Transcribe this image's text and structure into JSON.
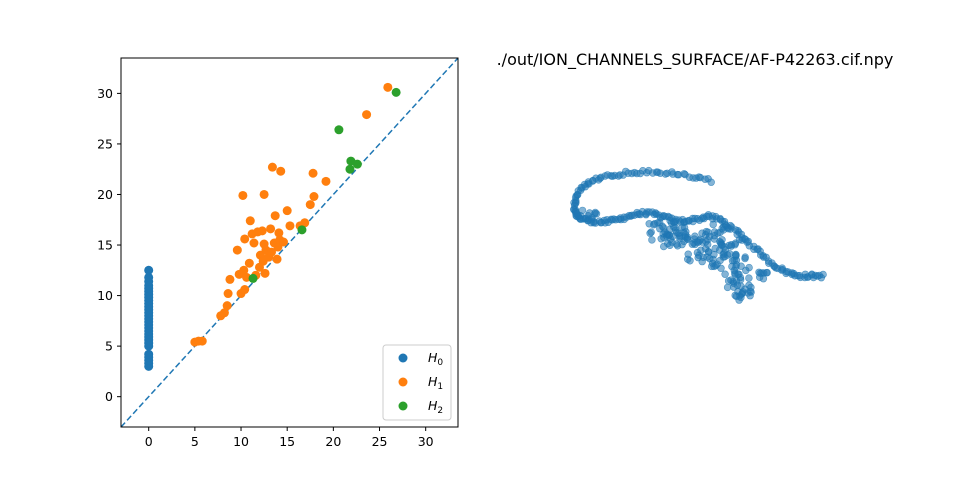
{
  "title": "./out/ION_CHANNELS_SURFACE/AF-P42263.cif.npy",
  "colors": {
    "H0": "#1f77b4",
    "H1": "#ff7f0e",
    "H2": "#2ca02c",
    "diagonal": "#1f77b4",
    "cloud": "#1f77b4"
  },
  "chart_data": [
    {
      "type": "scatter",
      "title": "",
      "xlabel": "",
      "ylabel": "",
      "xlim": [
        -3,
        33.5
      ],
      "ylim": [
        -3,
        33.5
      ],
      "xticks": [
        0,
        5,
        10,
        15,
        20,
        25,
        30
      ],
      "yticks": [
        0,
        5,
        10,
        15,
        20,
        25,
        30
      ],
      "grid": false,
      "legend": "lower-right",
      "diagonal": {
        "style": "dashed",
        "from": [
          -3,
          -3
        ],
        "to": [
          33.5,
          33.5
        ]
      },
      "series": [
        {
          "name": "H",
          "subscript": "0",
          "color_key": "H0",
          "points": [
            [
              0,
              3.0
            ],
            [
              0,
              3.3
            ],
            [
              0,
              3.6
            ],
            [
              0,
              3.9
            ],
            [
              0,
              4.2
            ],
            [
              0,
              5.0
            ],
            [
              0,
              5.3
            ],
            [
              0,
              5.6
            ],
            [
              0,
              5.9
            ],
            [
              0,
              6.2
            ],
            [
              0,
              6.5
            ],
            [
              0,
              6.8
            ],
            [
              0,
              7.1
            ],
            [
              0,
              7.4
            ],
            [
              0,
              7.7
            ],
            [
              0,
              8.0
            ],
            [
              0,
              8.3
            ],
            [
              0,
              8.6
            ],
            [
              0,
              8.9
            ],
            [
              0,
              9.2
            ],
            [
              0,
              9.5
            ],
            [
              0,
              9.8
            ],
            [
              0,
              10.1
            ],
            [
              0,
              10.4
            ],
            [
              0,
              10.7
            ],
            [
              0,
              11.0
            ],
            [
              0,
              11.4
            ],
            [
              0,
              11.8
            ],
            [
              0,
              12.5
            ]
          ]
        },
        {
          "name": "H",
          "subscript": "1",
          "color_key": "H1",
          "points": [
            [
              5.0,
              5.4
            ],
            [
              5.4,
              5.5
            ],
            [
              5.8,
              5.5
            ],
            [
              7.8,
              8.0
            ],
            [
              8.2,
              8.3
            ],
            [
              8.5,
              9.0
            ],
            [
              8.6,
              10.2
            ],
            [
              8.8,
              11.6
            ],
            [
              9.6,
              14.5
            ],
            [
              9.8,
              12.1
            ],
            [
              10.0,
              10.2
            ],
            [
              10.3,
              12.5
            ],
            [
              10.4,
              10.6
            ],
            [
              10.6,
              11.8
            ],
            [
              10.2,
              19.9
            ],
            [
              10.4,
              15.6
            ],
            [
              10.9,
              13.2
            ],
            [
              11.0,
              17.4
            ],
            [
              11.2,
              16.1
            ],
            [
              11.4,
              15.2
            ],
            [
              11.6,
              12.0
            ],
            [
              11.8,
              16.3
            ],
            [
              12.0,
              12.8
            ],
            [
              12.1,
              14.0
            ],
            [
              12.3,
              16.4
            ],
            [
              12.4,
              13.4
            ],
            [
              12.5,
              15.1
            ],
            [
              12.6,
              12.2
            ],
            [
              12.7,
              14.5
            ],
            [
              12.5,
              20.0
            ],
            [
              13.0,
              13.8
            ],
            [
              13.2,
              16.6
            ],
            [
              13.3,
              14.3
            ],
            [
              13.4,
              22.7
            ],
            [
              13.6,
              15.2
            ],
            [
              13.7,
              17.9
            ],
            [
              13.9,
              13.6
            ],
            [
              14.0,
              14.8
            ],
            [
              14.1,
              16.2
            ],
            [
              14.2,
              15.5
            ],
            [
              14.3,
              22.3
            ],
            [
              14.6,
              15.3
            ],
            [
              15.0,
              18.4
            ],
            [
              15.3,
              16.9
            ],
            [
              16.4,
              16.9
            ],
            [
              16.9,
              17.2
            ],
            [
              17.5,
              19.0
            ],
            [
              17.8,
              22.1
            ],
            [
              17.9,
              19.8
            ],
            [
              19.2,
              21.3
            ],
            [
              23.6,
              27.9
            ],
            [
              25.9,
              30.6
            ]
          ]
        },
        {
          "name": "H",
          "subscript": "2",
          "color_key": "H2",
          "points": [
            [
              11.3,
              11.7
            ],
            [
              16.6,
              16.5
            ],
            [
              20.6,
              26.4
            ],
            [
              21.8,
              22.5
            ],
            [
              21.9,
              23.3
            ],
            [
              22.6,
              23.0
            ],
            [
              26.8,
              30.1
            ]
          ]
        }
      ]
    },
    {
      "type": "scatter",
      "title": "./out/ION_CHANNELS_SURFACE/AF-P42263.cif.npy",
      "axes": "off",
      "description_of_marks": "2D projection of a point cloud (~400 points), alpha-blended markers",
      "color_key": "cloud",
      "xlim": [
        0,
        100
      ],
      "ylim": [
        0,
        100
      ],
      "path_points": [
        [
          55,
          63
        ],
        [
          48,
          64.5
        ],
        [
          41,
          65.5
        ],
        [
          34,
          66
        ],
        [
          27,
          66
        ],
        [
          21,
          65.5
        ],
        [
          15,
          64.5
        ],
        [
          10,
          63
        ],
        [
          6.5,
          61
        ],
        [
          4.5,
          58
        ],
        [
          3.5,
          55
        ],
        [
          4,
          52.5
        ],
        [
          6.5,
          51
        ],
        [
          10,
          50.5
        ],
        [
          14,
          50
        ],
        [
          18,
          50.5
        ],
        [
          22,
          51.5
        ],
        [
          26,
          52.5
        ],
        [
          30,
          53
        ],
        [
          34,
          52.5
        ],
        [
          38,
          51.5
        ],
        [
          42,
          50.5
        ],
        [
          46,
          50.5
        ],
        [
          50,
          51
        ],
        [
          54,
          52
        ],
        [
          58,
          51
        ],
        [
          62,
          49
        ],
        [
          66,
          46
        ],
        [
          70,
          43
        ],
        [
          74,
          40
        ],
        [
          78,
          37
        ],
        [
          82,
          35
        ],
        [
          86,
          33.5
        ],
        [
          90,
          33
        ],
        [
          94,
          33
        ],
        [
          98,
          33
        ]
      ],
      "extra_clusters": [
        {
          "cx": 37,
          "cy": 48,
          "rx": 7,
          "ry": 3,
          "n": 18
        },
        {
          "cx": 40,
          "cy": 46,
          "rx": 9,
          "ry": 4,
          "n": 22
        },
        {
          "cx": 47,
          "cy": 45,
          "rx": 6,
          "ry": 4,
          "n": 15
        },
        {
          "cx": 50,
          "cy": 41,
          "rx": 6,
          "ry": 4,
          "n": 14
        },
        {
          "cx": 55,
          "cy": 43,
          "rx": 7,
          "ry": 5,
          "n": 18
        },
        {
          "cx": 59,
          "cy": 40,
          "rx": 7,
          "ry": 4,
          "n": 18
        },
        {
          "cx": 63,
          "cy": 37,
          "rx": 8,
          "ry": 4,
          "n": 18
        },
        {
          "cx": 64,
          "cy": 33,
          "rx": 5,
          "ry": 3,
          "n": 10
        },
        {
          "cx": 66,
          "cy": 30,
          "rx": 5,
          "ry": 4,
          "n": 12
        },
        {
          "cx": 68,
          "cy": 26.5,
          "rx": 4,
          "ry": 3,
          "n": 10
        },
        {
          "cx": 57,
          "cy": 47.5,
          "rx": 5,
          "ry": 2.5,
          "n": 10
        },
        {
          "cx": 63,
          "cy": 44,
          "rx": 5,
          "ry": 3,
          "n": 10
        },
        {
          "cx": 75,
          "cy": 34,
          "rx": 4,
          "ry": 2,
          "n": 8
        },
        {
          "cx": 8,
          "cy": 52,
          "rx": 5,
          "ry": 2,
          "n": 12
        }
      ]
    }
  ]
}
